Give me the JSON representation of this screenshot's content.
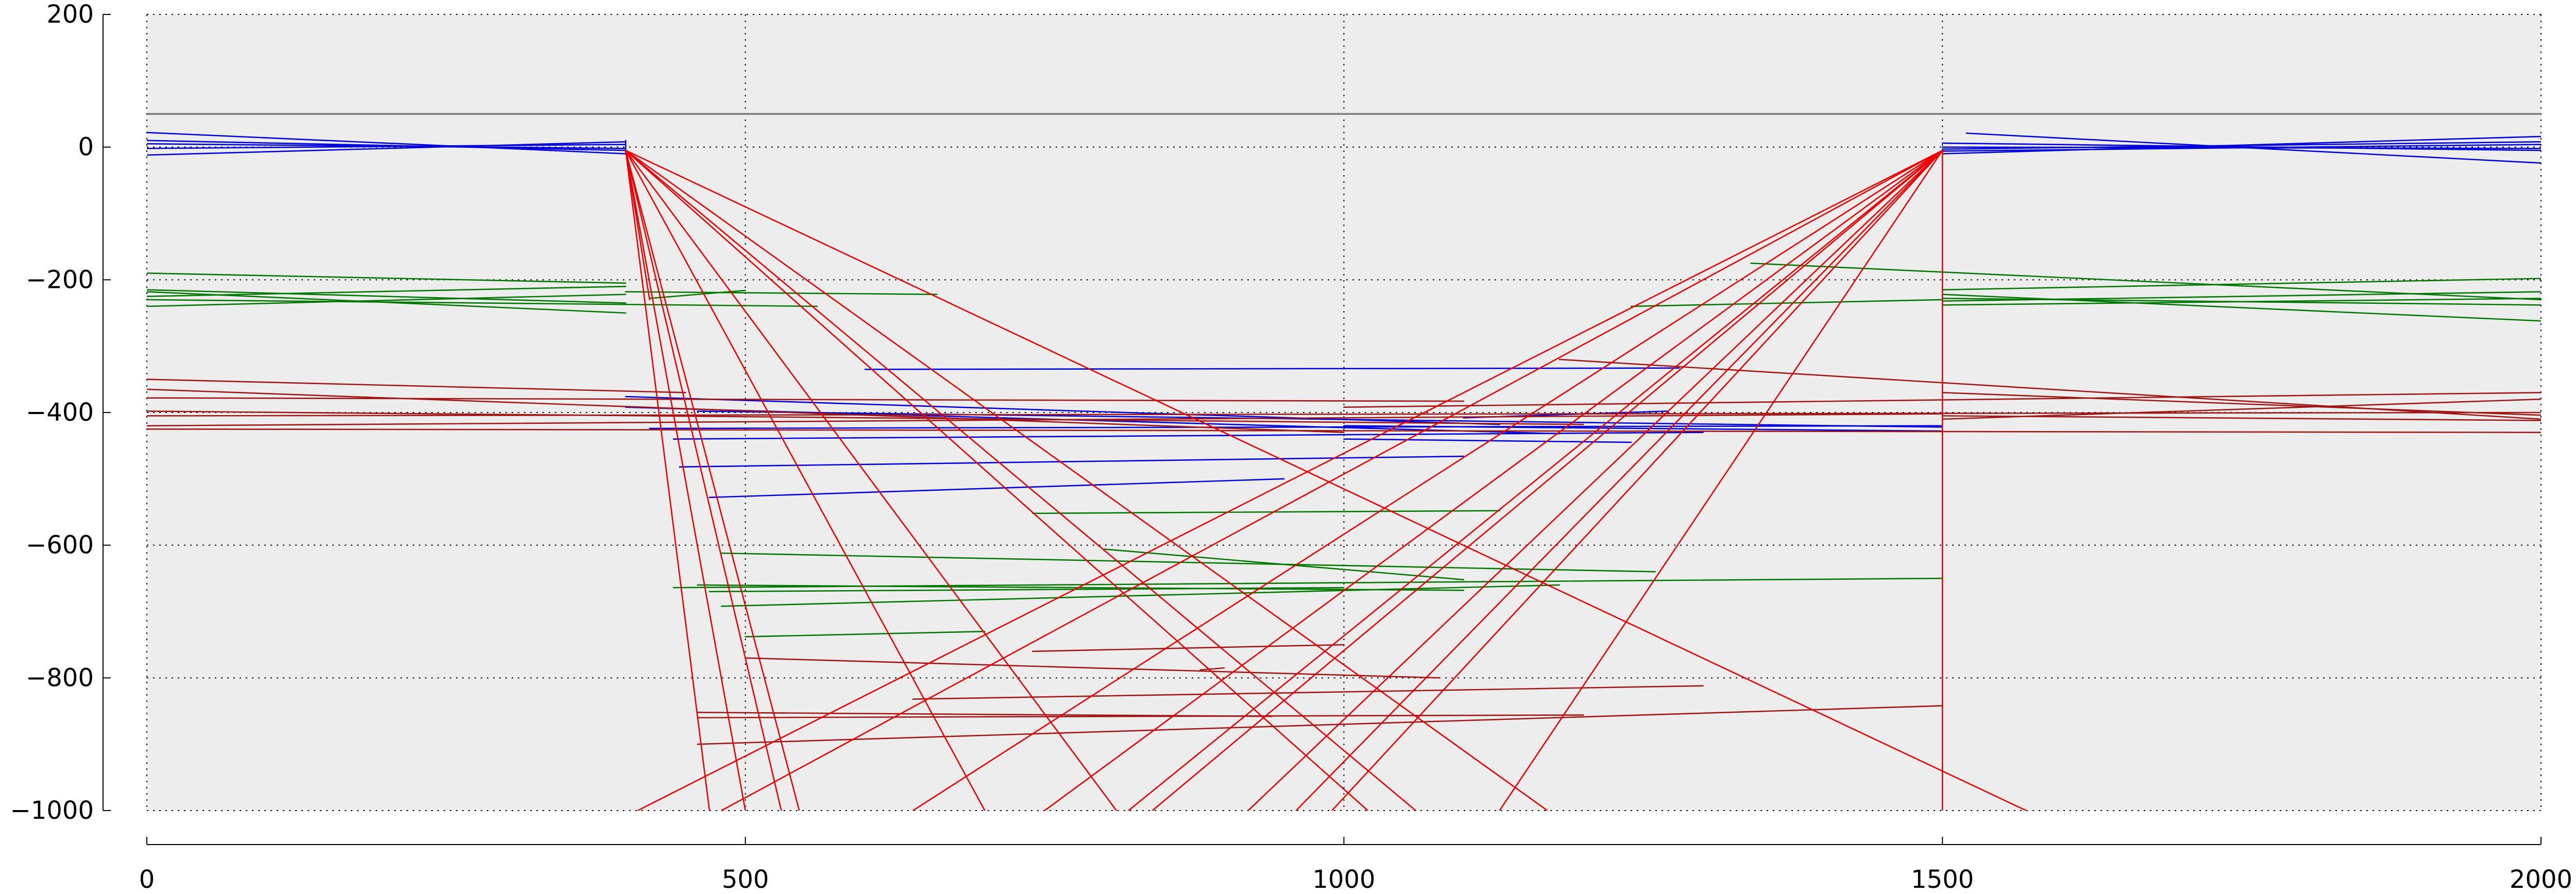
{
  "chart_data": {
    "type": "line",
    "title": "",
    "xlabel": "",
    "ylabel": "",
    "xlim": [
      0,
      2000
    ],
    "ylim": [
      -1000,
      200
    ],
    "x_ticks": [
      0,
      500,
      1000,
      1500,
      2000
    ],
    "y_ticks": [
      200,
      0,
      -200,
      -400,
      -600,
      -800,
      -1000
    ],
    "x_tick_labels": [
      "0",
      "500",
      "1000",
      "1500",
      "2000"
    ],
    "y_tick_labels": [
      "200",
      "0",
      "−200",
      "−400",
      "−600",
      "−800",
      "−1000"
    ],
    "grid": true,
    "legend": false,
    "background": "#ededed",
    "series": [
      {
        "color": "#7a7a7a",
        "width": 3.4,
        "segments": [
          [
            [
              0,
              50
            ],
            [
              2000,
              50
            ]
          ]
        ]
      },
      {
        "color": "#0000dd",
        "width": 2.6,
        "segments": [
          [
            [
              0,
              22
            ],
            [
              400,
              -10
            ]
          ],
          [
            [
              0,
              -12
            ],
            [
              400,
              8
            ]
          ],
          [
            [
              0,
              10
            ],
            [
              400,
              -5
            ]
          ],
          [
            [
              0,
              -2
            ],
            [
              400,
              4
            ]
          ],
          [
            [
              0,
              5
            ],
            [
              400,
              -2
            ]
          ],
          [
            [
              400,
              10
            ],
            [
              400,
              -10
            ]
          ],
          [
            [
              1500,
              -10
            ],
            [
              2000,
              16
            ]
          ],
          [
            [
              1500,
              6
            ],
            [
              2000,
              -5
            ]
          ],
          [
            [
              1520,
              21
            ],
            [
              2000,
              -24
            ]
          ],
          [
            [
              1500,
              -3
            ],
            [
              2000,
              8
            ]
          ],
          [
            [
              1500,
              0
            ],
            [
              2000,
              -2
            ]
          ],
          [
            [
              1500,
              -6
            ],
            [
              2000,
              4
            ]
          ],
          [
            [
              400,
              -376
            ],
            [
              1130,
              -418
            ]
          ],
          [
            [
              400,
              -392
            ],
            [
              1180,
              -432
            ]
          ],
          [
            [
              440,
              -440
            ],
            [
              1300,
              -430
            ]
          ],
          [
            [
              420,
              -424
            ],
            [
              1500,
              -420
            ]
          ],
          [
            [
              460,
              -398
            ],
            [
              1500,
              -422
            ]
          ],
          [
            [
              600,
              -335
            ],
            [
              1280,
              -333
            ]
          ],
          [
            [
              1000,
              -420
            ],
            [
              1500,
              -428
            ]
          ],
          [
            [
              1100,
              -408
            ],
            [
              1270,
              -398
            ]
          ],
          [
            [
              445,
              -482
            ],
            [
              1100,
              -466
            ]
          ],
          [
            [
              470,
              -528
            ],
            [
              950,
              -500
            ]
          ],
          [
            [
              1000,
              -440
            ],
            [
              1240,
              -445
            ]
          ]
        ]
      },
      {
        "color": "#007700",
        "width": 2.6,
        "segments": [
          [
            [
              0,
              -190
            ],
            [
              400,
              -205
            ]
          ],
          [
            [
              0,
              -215
            ],
            [
              400,
              -235
            ]
          ],
          [
            [
              0,
              -225
            ],
            [
              400,
              -210
            ]
          ],
          [
            [
              0,
              -240
            ],
            [
              400,
              -222
            ]
          ],
          [
            [
              0,
              -218
            ],
            [
              400,
              -250
            ]
          ],
          [
            [
              0,
              -230
            ],
            [
              560,
              -240
            ]
          ],
          [
            [
              400,
              -218
            ],
            [
              660,
              -222
            ]
          ],
          [
            [
              420,
              -228
            ],
            [
              500,
              -216
            ]
          ],
          [
            [
              1500,
              -215
            ],
            [
              2000,
              -198
            ]
          ],
          [
            [
              1500,
              -232
            ],
            [
              2000,
              -218
            ]
          ],
          [
            [
              1500,
              -222
            ],
            [
              2000,
              -262
            ]
          ],
          [
            [
              1500,
              -238
            ],
            [
              2000,
              -228
            ]
          ],
          [
            [
              1500,
              -228
            ],
            [
              2000,
              -238
            ]
          ],
          [
            [
              1340,
              -175
            ],
            [
              2000,
              -230
            ]
          ],
          [
            [
              1240,
              -240
            ],
            [
              1500,
              -230
            ]
          ],
          [
            [
              740,
              -552
            ],
            [
              1130,
              -548
            ]
          ],
          [
            [
              480,
              -612
            ],
            [
              1260,
              -640
            ]
          ],
          [
            [
              800,
              -606
            ],
            [
              1100,
              -652
            ]
          ],
          [
            [
              460,
              -660
            ],
            [
              1100,
              -668
            ]
          ],
          [
            [
              440,
              -664
            ],
            [
              1500,
              -650
            ]
          ],
          [
            [
              480,
              -692
            ],
            [
              1180,
              -660
            ]
          ],
          [
            [
              500,
              -738
            ],
            [
              700,
              -730
            ]
          ],
          [
            [
              470,
              -670
            ],
            [
              1000,
              -664
            ]
          ]
        ]
      },
      {
        "color": "#a01515",
        "width": 2.6,
        "segments": [
          [
            [
              0,
              -350
            ],
            [
              450,
              -370
            ]
          ],
          [
            [
              0,
              -365
            ],
            [
              1000,
              -430
            ]
          ],
          [
            [
              0,
              -420
            ],
            [
              1500,
              -402
            ]
          ],
          [
            [
              0,
              -425
            ],
            [
              2000,
              -430
            ]
          ],
          [
            [
              0,
              -405
            ],
            [
              2000,
              -400
            ]
          ],
          [
            [
              0,
              -398
            ],
            [
              1200,
              -418
            ]
          ],
          [
            [
              0,
              -378
            ],
            [
              1100,
              -383
            ]
          ],
          [
            [
              1180,
              -320
            ],
            [
              2000,
              -410
            ]
          ],
          [
            [
              1000,
              -392
            ],
            [
              2000,
              -370
            ]
          ],
          [
            [
              1500,
              -410
            ],
            [
              2000,
              -380
            ]
          ],
          [
            [
              1500,
              -370
            ],
            [
              2000,
              -404
            ]
          ],
          [
            [
              1500,
              -405
            ],
            [
              2000,
              -412
            ]
          ],
          [
            [
              500,
              -770
            ],
            [
              1080,
              -800
            ]
          ],
          [
            [
              740,
              -760
            ],
            [
              1000,
              -750
            ]
          ],
          [
            [
              880,
              -788
            ],
            [
              900,
              -785
            ]
          ],
          [
            [
              460,
              -900
            ],
            [
              1500,
              -842
            ]
          ],
          [
            [
              460,
              -860
            ],
            [
              1200,
              -856
            ]
          ],
          [
            [
              640,
              -832
            ],
            [
              1300,
              -812
            ]
          ],
          [
            [
              460,
              -852
            ],
            [
              940,
              -858
            ]
          ]
        ]
      },
      {
        "color": "#ee0000",
        "width": 2.6,
        "segments": [
          [
            [
              400,
              -5
            ],
            [
              470,
              -1000
            ]
          ],
          [
            [
              400,
              -5
            ],
            [
              500,
              -1000
            ]
          ],
          [
            [
              400,
              -5
            ],
            [
              530,
              -1000
            ]
          ],
          [
            [
              400,
              -5
            ],
            [
              545,
              -1000
            ]
          ],
          [
            [
              400,
              -5
            ],
            [
              810,
              -1000
            ]
          ],
          [
            [
              400,
              -5
            ],
            [
              1060,
              -1000
            ]
          ],
          [
            [
              400,
              -5
            ],
            [
              1170,
              -1000
            ]
          ],
          [
            [
              400,
              -5
            ],
            [
              1570,
              -1000
            ]
          ],
          [
            [
              400,
              -5
            ],
            [
              700,
              -1000
            ]
          ],
          [
            [
              400,
              -5
            ],
            [
              1020,
              -1000
            ]
          ],
          [
            [
              400,
              -5
            ],
            [
              420,
              -230
            ]
          ],
          [
            [
              1500,
              -5
            ],
            [
              410,
              -1000
            ]
          ],
          [
            [
              1500,
              -5
            ],
            [
              480,
              -1000
            ]
          ],
          [
            [
              1500,
              -5
            ],
            [
              640,
              -1000
            ]
          ],
          [
            [
              1500,
              -5
            ],
            [
              820,
              -1000
            ]
          ],
          [
            [
              1500,
              -5
            ],
            [
              840,
              -1000
            ]
          ],
          [
            [
              1500,
              -5
            ],
            [
              920,
              -1000
            ]
          ],
          [
            [
              1500,
              -5
            ],
            [
              960,
              -1000
            ]
          ],
          [
            [
              1500,
              -5
            ],
            [
              990,
              -1000
            ]
          ],
          [
            [
              1500,
              -5
            ],
            [
              1130,
              -1000
            ]
          ],
          [
            [
              1500,
              -5
            ],
            [
              750,
              -1000
            ]
          ],
          [
            [
              1500,
              -5
            ],
            [
              1500,
              -1000
            ]
          ]
        ]
      }
    ]
  }
}
